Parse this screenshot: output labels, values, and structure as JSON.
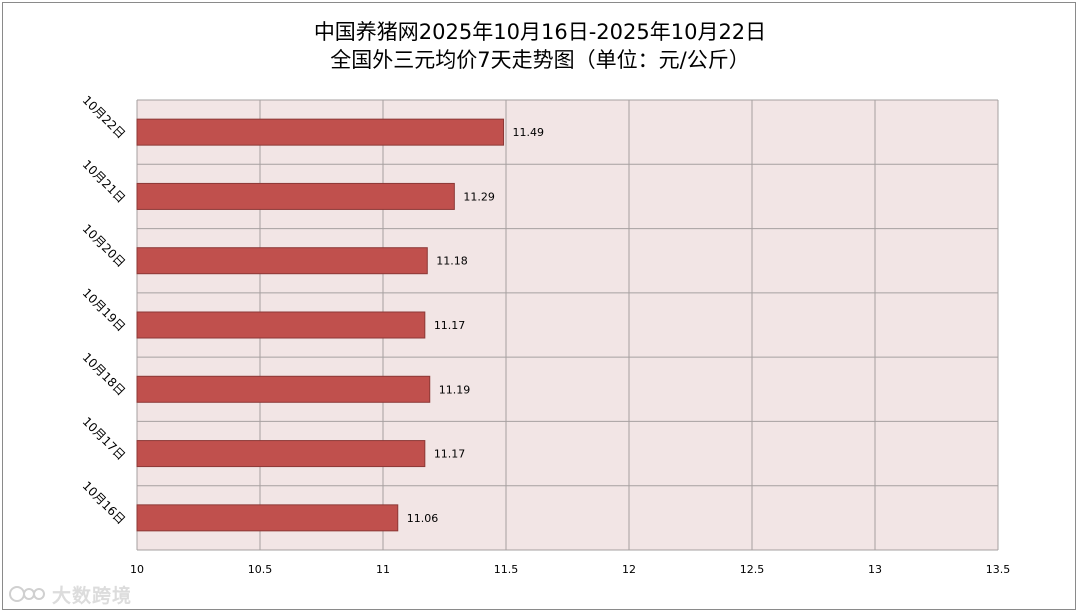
{
  "chart_data": {
    "type": "bar",
    "orientation": "horizontal",
    "title": "中国养猪网2025年10月16日-2025年10月22日",
    "subtitle": "全国外三元均价7天走势图（单位：元/公斤）",
    "categories": [
      "10月22日",
      "10月21日",
      "10月20日",
      "10月19日",
      "10月18日",
      "10月17日",
      "10月16日"
    ],
    "values": [
      11.49,
      11.29,
      11.18,
      11.17,
      11.19,
      11.17,
      11.06
    ],
    "data_labels": [
      "11.49",
      "11.29",
      "11.18",
      "11.17",
      "11.19",
      "11.17",
      "11.06"
    ],
    "xlim": [
      10,
      13.5
    ],
    "xticks": [
      10,
      10.5,
      11,
      11.5,
      12,
      12.5,
      13,
      13.5
    ],
    "xtick_labels": [
      "10",
      "10.5",
      "11",
      "11.5",
      "12",
      "12.5",
      "13",
      "13.5"
    ],
    "grid": true,
    "colors": {
      "bar_fill": "#c0504d",
      "bar_stroke": "#8c3836",
      "plot_bg": "#f2e5e5",
      "grid": "#a6a0a0"
    }
  },
  "watermark": {
    "icon": "watermark-logo-icon",
    "text": "大数跨境"
  }
}
